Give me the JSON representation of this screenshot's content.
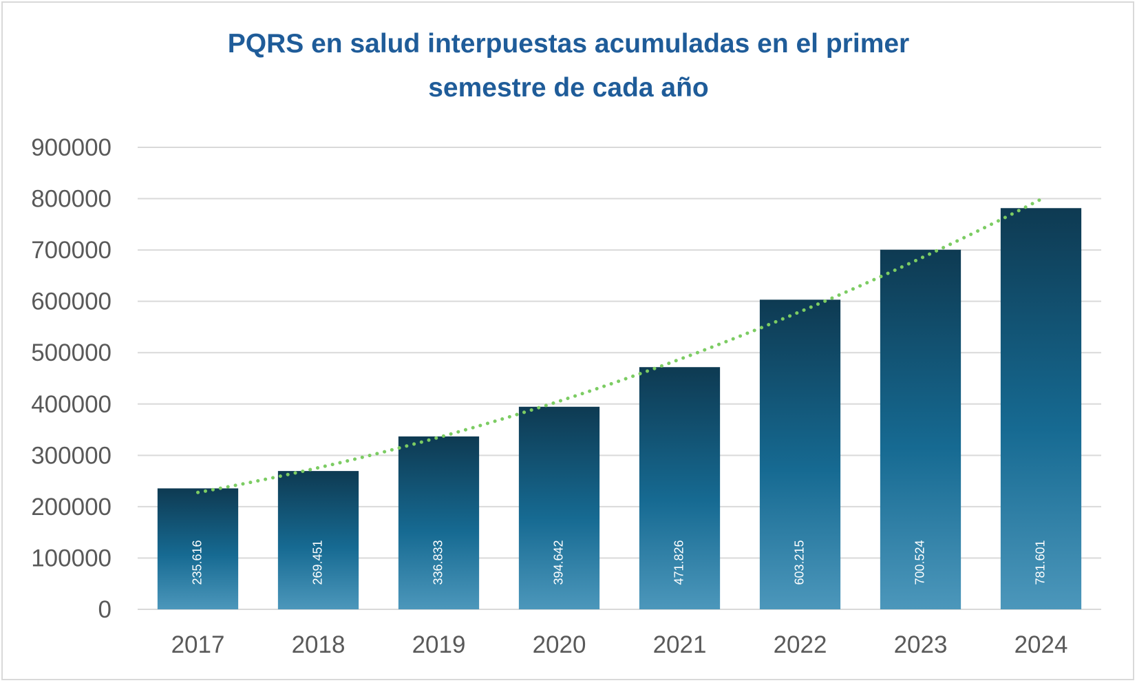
{
  "chart_data": {
    "type": "bar",
    "title": "PQRS en salud interpuestas acumuladas en el primer\nsemestre de cada año",
    "xlabel": "",
    "ylabel": "",
    "categories": [
      "2017",
      "2018",
      "2019",
      "2020",
      "2021",
      "2022",
      "2023",
      "2024"
    ],
    "values": [
      235616,
      269451,
      336833,
      394642,
      471826,
      603215,
      700524,
      781601
    ],
    "data_labels": [
      "235.616",
      "269.451",
      "336.833",
      "394.642",
      "471.826",
      "603.215",
      "700.524",
      "781.601"
    ],
    "ylim": [
      0,
      900000
    ],
    "yticks": [
      0,
      100000,
      200000,
      300000,
      400000,
      500000,
      600000,
      700000,
      800000,
      900000
    ],
    "ytick_labels": [
      "0",
      "100000",
      "200000",
      "300000",
      "400000",
      "500000",
      "600000",
      "700000",
      "800000",
      "900000"
    ],
    "grid": true,
    "legend": "none",
    "trendline": {
      "type": "polynomial",
      "style": "dotted",
      "color": "#7ccc63",
      "start_value": 230000,
      "end_value": 818000
    },
    "colors": {
      "title": "#1f5c99",
      "bar_top": "#0e3a52",
      "bar_mid": "#166a92",
      "bar_bottom": "#4c97bb",
      "grid": "#d9d9d9",
      "tick_text": "#595959",
      "data_label": "#ffffff"
    }
  }
}
